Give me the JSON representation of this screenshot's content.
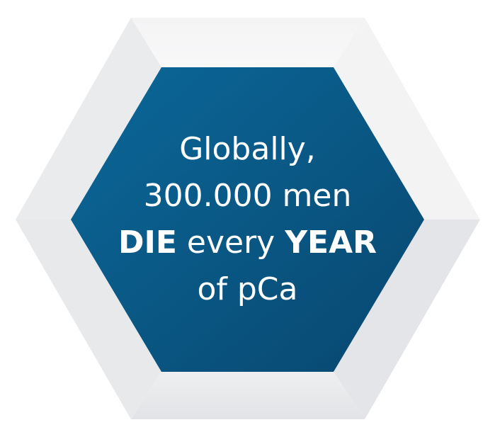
{
  "badge": {
    "line1": "Globally,",
    "line2": "300.000 men",
    "line3_bold_a": "DIE",
    "line3_regular": " every ",
    "line3_bold_b": "YEAR",
    "line4": "of pCa"
  },
  "colors": {
    "inner_dark": "#0a4670",
    "inner_light": "#0b6596",
    "frame_light": "#f6f6f7",
    "frame_mid": "#e6e7e9",
    "frame_dark": "#d8d9dc",
    "text": "#ffffff"
  }
}
